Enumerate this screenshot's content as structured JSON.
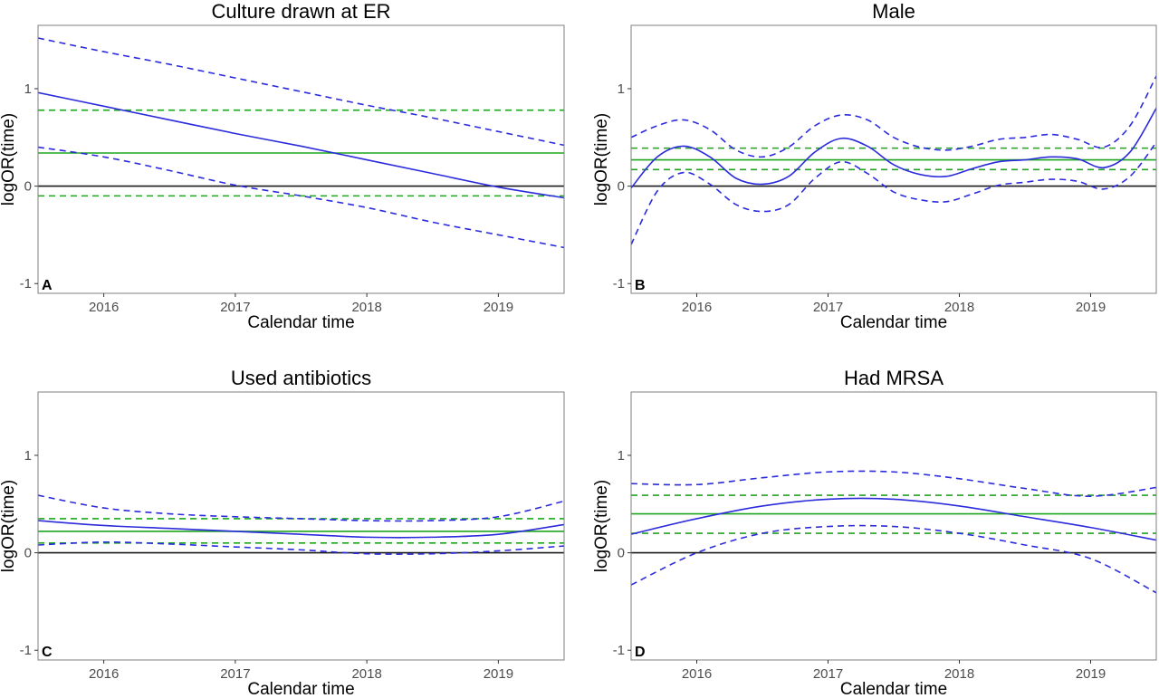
{
  "figure": {
    "x_axis_label": "Calendar time",
    "y_axis_label": "logOR(time)",
    "colors": {
      "estimate": "#2b2bdc",
      "reference_line": "#1ea51e",
      "zero_line": "#1a1a1a",
      "frame": "#7f7f7f"
    }
  },
  "chart_data": [
    {
      "type": "line",
      "panel": "A",
      "title": "Culture drawn at ER",
      "xlabel": "Calendar time",
      "ylabel": "logOR(time)",
      "xlim": [
        2015.5,
        2019.5
      ],
      "ylim": [
        -1.1,
        1.65
      ],
      "x_ticks": [
        2016,
        2017,
        2018,
        2019
      ],
      "x_tick_labels": [
        "2016",
        "2017",
        "2018",
        "2019"
      ],
      "y_ticks": [
        -1,
        0,
        1
      ],
      "y_tick_labels": [
        "-1",
        "0",
        "1"
      ],
      "grid": false,
      "x": [
        2015.5,
        2016.0,
        2016.5,
        2017.0,
        2017.5,
        2018.0,
        2018.5,
        2019.0,
        2019.5
      ],
      "series": [
        {
          "role": "estimate",
          "values": [
            0.96,
            0.82,
            0.68,
            0.54,
            0.41,
            0.27,
            0.13,
            -0.01,
            -0.12
          ]
        },
        {
          "role": "upper_ci",
          "values": [
            1.52,
            1.38,
            1.25,
            1.11,
            0.97,
            0.83,
            0.7,
            0.56,
            0.42
          ]
        },
        {
          "role": "lower_ci",
          "values": [
            0.4,
            0.3,
            0.16,
            0.01,
            -0.1,
            -0.22,
            -0.37,
            -0.5,
            -0.63
          ]
        }
      ],
      "reference": {
        "estimate": 0.34,
        "lower": -0.1,
        "upper": 0.78
      },
      "zero_line": 0
    },
    {
      "type": "line",
      "panel": "B",
      "title": "Male",
      "xlabel": "Calendar time",
      "ylabel": "logOR(time)",
      "xlim": [
        2015.5,
        2019.5
      ],
      "ylim": [
        -1.1,
        1.65
      ],
      "x_ticks": [
        2016,
        2017,
        2018,
        2019
      ],
      "x_tick_labels": [
        "2016",
        "2017",
        "2018",
        "2019"
      ],
      "y_ticks": [
        -1,
        0,
        1
      ],
      "y_tick_labels": [
        "-1",
        "0",
        "1"
      ],
      "grid": false,
      "x": [
        2015.5,
        2015.7,
        2015.9,
        2016.1,
        2016.3,
        2016.5,
        2016.7,
        2016.9,
        2017.1,
        2017.3,
        2017.5,
        2017.7,
        2017.9,
        2018.1,
        2018.3,
        2018.5,
        2018.7,
        2018.9,
        2019.1,
        2019.3,
        2019.5
      ],
      "series": [
        {
          "role": "estimate",
          "values": [
            -0.02,
            0.3,
            0.41,
            0.3,
            0.08,
            0.02,
            0.1,
            0.35,
            0.49,
            0.41,
            0.22,
            0.12,
            0.1,
            0.18,
            0.25,
            0.27,
            0.3,
            0.28,
            0.19,
            0.35,
            0.8
          ]
        },
        {
          "role": "upper_ci",
          "values": [
            0.5,
            0.62,
            0.68,
            0.58,
            0.37,
            0.3,
            0.4,
            0.62,
            0.73,
            0.68,
            0.5,
            0.4,
            0.37,
            0.41,
            0.48,
            0.5,
            0.53,
            0.48,
            0.4,
            0.62,
            1.13
          ]
        },
        {
          "role": "lower_ci",
          "values": [
            -0.6,
            -0.05,
            0.14,
            0.02,
            -0.19,
            -0.26,
            -0.19,
            0.08,
            0.25,
            0.13,
            -0.06,
            -0.14,
            -0.16,
            -0.08,
            0.01,
            0.04,
            0.07,
            0.05,
            -0.03,
            0.1,
            0.45
          ]
        }
      ],
      "reference": {
        "estimate": 0.27,
        "lower": 0.17,
        "upper": 0.39
      },
      "zero_line": 0
    },
    {
      "type": "line",
      "panel": "C",
      "title": "Used antibiotics",
      "xlabel": "Calendar time",
      "ylabel": "logOR(time)",
      "xlim": [
        2015.5,
        2019.5
      ],
      "ylim": [
        -1.1,
        1.65
      ],
      "x_ticks": [
        2016,
        2017,
        2018,
        2019
      ],
      "x_tick_labels": [
        "2016",
        "2017",
        "2018",
        "2019"
      ],
      "y_ticks": [
        -1,
        0,
        1
      ],
      "y_tick_labels": [
        "-1",
        "0",
        "1"
      ],
      "grid": false,
      "x": [
        2015.5,
        2016.0,
        2016.5,
        2017.0,
        2017.5,
        2018.0,
        2018.5,
        2019.0,
        2019.5
      ],
      "series": [
        {
          "role": "estimate",
          "values": [
            0.33,
            0.28,
            0.25,
            0.22,
            0.19,
            0.16,
            0.16,
            0.19,
            0.29
          ]
        },
        {
          "role": "upper_ci",
          "values": [
            0.59,
            0.46,
            0.4,
            0.37,
            0.35,
            0.33,
            0.33,
            0.37,
            0.53
          ]
        },
        {
          "role": "lower_ci",
          "values": [
            0.08,
            0.11,
            0.09,
            0.06,
            0.03,
            -0.01,
            -0.01,
            0.02,
            0.07
          ]
        }
      ],
      "reference": {
        "estimate": 0.22,
        "lower": 0.1,
        "upper": 0.35
      },
      "zero_line": 0
    },
    {
      "type": "line",
      "panel": "D",
      "title": "Had MRSA",
      "xlabel": "Calendar time",
      "ylabel": "logOR(time)",
      "xlim": [
        2015.5,
        2019.5
      ],
      "ylim": [
        -1.1,
        1.65
      ],
      "x_ticks": [
        2016,
        2017,
        2018,
        2019
      ],
      "x_tick_labels": [
        "2016",
        "2017",
        "2018",
        "2019"
      ],
      "y_ticks": [
        -1,
        0,
        1
      ],
      "y_tick_labels": [
        "-1",
        "0",
        "1"
      ],
      "grid": false,
      "x": [
        2015.5,
        2016.0,
        2016.5,
        2017.0,
        2017.5,
        2018.0,
        2018.5,
        2019.0,
        2019.5
      ],
      "series": [
        {
          "role": "estimate",
          "values": [
            0.19,
            0.35,
            0.48,
            0.55,
            0.55,
            0.48,
            0.37,
            0.26,
            0.13
          ]
        },
        {
          "role": "upper_ci",
          "values": [
            0.71,
            0.7,
            0.77,
            0.83,
            0.83,
            0.76,
            0.66,
            0.58,
            0.67
          ]
        },
        {
          "role": "lower_ci",
          "values": [
            -0.33,
            0.0,
            0.2,
            0.27,
            0.27,
            0.2,
            0.08,
            -0.06,
            -0.41
          ]
        }
      ],
      "reference": {
        "estimate": 0.4,
        "lower": 0.2,
        "upper": 0.59
      },
      "zero_line": 0
    }
  ]
}
